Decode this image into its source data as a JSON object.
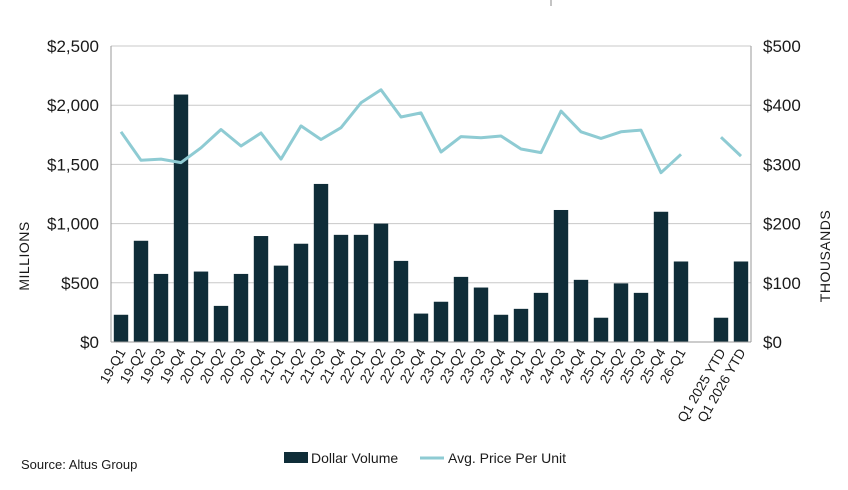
{
  "chart_data": {
    "type": "bar",
    "categories": [
      "19-Q1",
      "19-Q2",
      "19-Q3",
      "19-Q4",
      "20-Q1",
      "20-Q2",
      "20-Q3",
      "20-Q4",
      "21-Q1",
      "21-Q2",
      "21-Q3",
      "21-Q4",
      "22-Q1",
      "22-Q2",
      "22-Q3",
      "22-Q4",
      "23-Q1",
      "23-Q2",
      "23-Q3",
      "23-Q4",
      "24-Q1",
      "24-Q2",
      "24-Q3",
      "24-Q4",
      "25-Q1",
      "25-Q2",
      "25-Q3",
      "25-Q4",
      "26-Q1",
      "",
      "Q1 2025 YTD",
      "Q1 2026 YTD"
    ],
    "series": [
      {
        "name": "Dollar Volume",
        "type": "bar",
        "axis": "left",
        "color": "#0f2d38",
        "values": [
          230,
          855,
          575,
          2090,
          595,
          305,
          575,
          895,
          645,
          830,
          1335,
          905,
          905,
          1000,
          685,
          240,
          340,
          550,
          460,
          230,
          280,
          415,
          1115,
          525,
          205,
          495,
          415,
          1100,
          680,
          null,
          205,
          680
        ]
      },
      {
        "name": "Avg. Price Per Unit",
        "type": "line",
        "axis": "right",
        "color": "#8ecbd3",
        "values": [
          355,
          307,
          309,
          303,
          328,
          359,
          331,
          353,
          309,
          365,
          342,
          362,
          404,
          426,
          380,
          387,
          321,
          347,
          345,
          348,
          326,
          320,
          390,
          355,
          344,
          355,
          358,
          286,
          317,
          null,
          346,
          314
        ]
      }
    ],
    "y_left": {
      "label": "MILLIONS",
      "min": 0,
      "max": 2500,
      "ticks": [
        "$0",
        "$500",
        "$1,000",
        "$1,500",
        "$2,000",
        "$2,500"
      ]
    },
    "y_right": {
      "label": "THOUSANDS",
      "min": 0,
      "max": 500,
      "ticks": [
        "$0",
        "$100",
        "$200",
        "$300",
        "$400",
        "$500"
      ]
    },
    "grid": true,
    "legend_position": "bottom-center",
    "source": "Source: Altus Group"
  }
}
